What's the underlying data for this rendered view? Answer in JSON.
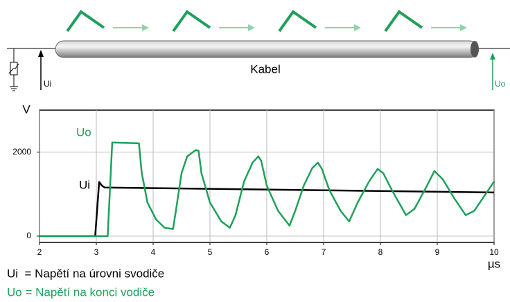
{
  "diagram": {
    "cable_label": "Kabel",
    "input_label": "Ui",
    "output_label": "Uo"
  },
  "chart_data": {
    "type": "line",
    "ylabel": "V",
    "xlabel": "µs",
    "xlim": [
      2,
      10
    ],
    "xticks": [
      2,
      3,
      4,
      5,
      6,
      7,
      8,
      9,
      10
    ],
    "ylim": [
      -150,
      3000
    ],
    "yticks": [
      0,
      2000
    ],
    "grid": true,
    "series": [
      {
        "name": "Ui",
        "color": "#000000",
        "x": [
          2,
          2.98,
          3.05,
          3.1,
          3.15,
          10
        ],
        "values": [
          0,
          0,
          1290,
          1200,
          1157,
          1040
        ]
      },
      {
        "name": "Uo",
        "color": "#1fa05a",
        "x": [
          2,
          3.2,
          3.28,
          3.75,
          3.8,
          3.9,
          4.05,
          4.2,
          4.35,
          4.4,
          4.5,
          4.6,
          4.75,
          4.8,
          4.85,
          5.0,
          5.2,
          5.35,
          5.45,
          5.6,
          5.75,
          5.85,
          5.9,
          6.0,
          6.2,
          6.4,
          6.5,
          6.65,
          6.8,
          6.9,
          6.97,
          7.1,
          7.3,
          7.45,
          7.6,
          7.8,
          7.95,
          8.05,
          8.2,
          8.45,
          8.6,
          8.8,
          8.95,
          9.1,
          9.3,
          9.5,
          9.65,
          9.85,
          10
        ],
        "values": [
          0,
          0,
          2230,
          2210,
          1500,
          800,
          400,
          200,
          170,
          600,
          1500,
          1900,
          2050,
          2030,
          1500,
          800,
          350,
          200,
          500,
          1300,
          1750,
          1900,
          1800,
          1200,
          600,
          250,
          600,
          1200,
          1620,
          1750,
          1600,
          1100,
          600,
          350,
          800,
          1300,
          1600,
          1500,
          1100,
          500,
          650,
          1150,
          1550,
          1350,
          900,
          500,
          600,
          1000,
          1300
        ]
      }
    ],
    "annotations": [
      "Ui  = Napětí na úrovni svodiče",
      "Uo = Napětí na konci vodiče"
    ]
  }
}
